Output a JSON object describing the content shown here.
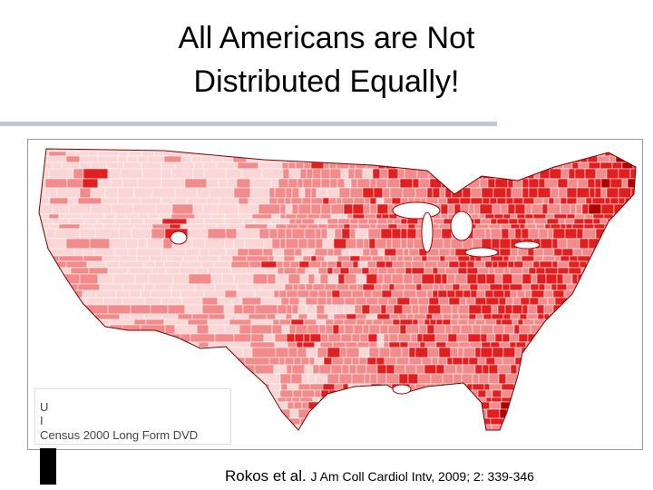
{
  "slide": {
    "title_line1": "All Americans are Not",
    "title_line2": "Distributed Equally!"
  },
  "map": {
    "source_line1": "U",
    "source_line2": "I",
    "source_line3": "Census 2000 Long Form DVD",
    "colors": {
      "low": "#fbd6d6",
      "mid": "#f28c8c",
      "high": "#e02020",
      "very_high": "#b00000",
      "outline": "#ffffff"
    }
  },
  "citation": {
    "authors": "Rokos et al. ",
    "journal": "J Am Coll Cardiol Intv, 2009; 2: 339-346"
  }
}
